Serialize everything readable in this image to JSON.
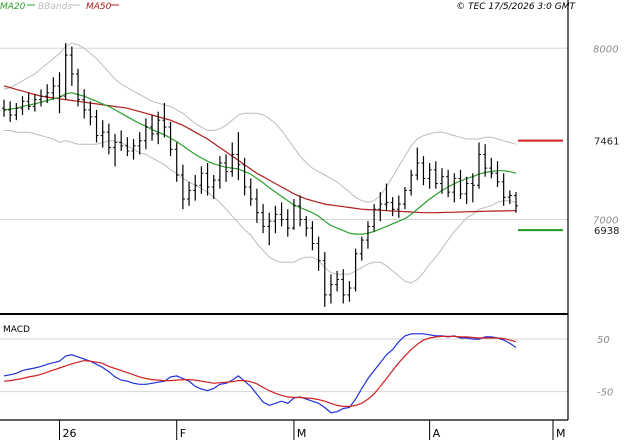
{
  "header": {
    "legend": [
      {
        "label": "MA20",
        "color": "#2ca02c"
      },
      {
        "label": "BBands",
        "color": "#bbbbbb"
      },
      {
        "label": "MA50",
        "color": "#b01c1c"
      }
    ],
    "timestamp": "© TEC 17/5/2026 3:0 GMT"
  },
  "levels": {
    "resistance": {
      "label": "7461",
      "value": 7461,
      "color": "#d21f1f"
    },
    "support": {
      "label": "6938",
      "value": 6938,
      "color": "#229922"
    }
  },
  "chart_data": [
    {
      "type": "ohlc",
      "title": "",
      "ylim": [
        6460,
        8200
      ],
      "y_ticks": [
        {
          "value": 8000,
          "label": "8000"
        },
        {
          "value": 7000,
          "label": "7000"
        }
      ],
      "grid": true,
      "x_ticks": [
        {
          "index": 9,
          "label": "26"
        },
        {
          "index": 28,
          "label": "F"
        },
        {
          "index": 47,
          "label": "M"
        },
        {
          "index": 69,
          "label": "A"
        },
        {
          "index": 89,
          "label": "M"
        }
      ],
      "bars": [
        [
          7650,
          7700,
          7600,
          7640
        ],
        [
          7640,
          7690,
          7570,
          7610
        ],
        [
          7610,
          7680,
          7580,
          7650
        ],
        [
          7650,
          7720,
          7610,
          7690
        ],
        [
          7690,
          7740,
          7640,
          7660
        ],
        [
          7660,
          7730,
          7630,
          7700
        ],
        [
          7700,
          7760,
          7660,
          7720
        ],
        [
          7720,
          7790,
          7680,
          7740
        ],
        [
          7740,
          7830,
          7700,
          7780
        ],
        [
          7780,
          7860,
          7620,
          7720
        ],
        [
          7720,
          8030,
          7700,
          7960
        ],
        [
          7960,
          8010,
          7780,
          7850
        ],
        [
          7850,
          7880,
          7660,
          7700
        ],
        [
          7700,
          7760,
          7590,
          7640
        ],
        [
          7640,
          7690,
          7550,
          7600
        ],
        [
          7600,
          7640,
          7450,
          7490
        ],
        [
          7490,
          7580,
          7420,
          7510
        ],
        [
          7510,
          7560,
          7380,
          7420
        ],
        [
          7420,
          7500,
          7310,
          7450
        ],
        [
          7450,
          7520,
          7400,
          7430
        ],
        [
          7430,
          7480,
          7370,
          7400
        ],
        [
          7400,
          7470,
          7350,
          7430
        ],
        [
          7430,
          7510,
          7380,
          7460
        ],
        [
          7460,
          7590,
          7410,
          7540
        ],
        [
          7540,
          7610,
          7460,
          7500
        ],
        [
          7500,
          7630,
          7440,
          7580
        ],
        [
          7580,
          7680,
          7480,
          7540
        ],
        [
          7540,
          7570,
          7370,
          7410
        ],
        [
          7410,
          7450,
          7220,
          7260
        ],
        [
          7260,
          7320,
          7060,
          7120
        ],
        [
          7120,
          7220,
          7080,
          7170
        ],
        [
          7170,
          7260,
          7110,
          7200
        ],
        [
          7200,
          7310,
          7150,
          7270
        ],
        [
          7270,
          7330,
          7140,
          7190
        ],
        [
          7190,
          7260,
          7120,
          7230
        ],
        [
          7230,
          7370,
          7180,
          7330
        ],
        [
          7330,
          7380,
          7220,
          7280
        ],
        [
          7280,
          7450,
          7250,
          7380
        ],
        [
          7380,
          7510,
          7230,
          7320
        ],
        [
          7320,
          7360,
          7140,
          7190
        ],
        [
          7190,
          7240,
          7080,
          7120
        ],
        [
          7120,
          7180,
          6980,
          7040
        ],
        [
          7040,
          7090,
          6920,
          6960
        ],
        [
          6960,
          7040,
          6850,
          6990
        ],
        [
          6990,
          7080,
          6920,
          7030
        ],
        [
          7030,
          7100,
          6960,
          7000
        ],
        [
          7000,
          7060,
          6900,
          6950
        ],
        [
          6950,
          7120,
          6940,
          7080
        ],
        [
          7080,
          7140,
          6960,
          7000
        ],
        [
          7000,
          7020,
          6900,
          6950
        ],
        [
          6950,
          6990,
          6820,
          6860
        ],
        [
          6860,
          6900,
          6700,
          6760
        ],
        [
          6760,
          6810,
          6490,
          6560
        ],
        [
          6560,
          6680,
          6510,
          6620
        ],
        [
          6620,
          6700,
          6580,
          6650
        ],
        [
          6650,
          6710,
          6510,
          6560
        ],
        [
          6560,
          6640,
          6520,
          6600
        ],
        [
          6600,
          6830,
          6580,
          6800
        ],
        [
          6800,
          6900,
          6760,
          6880
        ],
        [
          6880,
          6990,
          6830,
          6960
        ],
        [
          6960,
          7090,
          6930,
          7060
        ],
        [
          7060,
          7160,
          6990,
          7090
        ],
        [
          7090,
          7210,
          7050,
          7100
        ],
        [
          7100,
          7130,
          7020,
          7060
        ],
        [
          7060,
          7140,
          7010,
          7090
        ],
        [
          7090,
          7190,
          7060,
          7170
        ],
        [
          7170,
          7290,
          7140,
          7260
        ],
        [
          7260,
          7420,
          7230,
          7330
        ],
        [
          7330,
          7370,
          7200,
          7240
        ],
        [
          7240,
          7330,
          7180,
          7290
        ],
        [
          7290,
          7340,
          7180,
          7210
        ],
        [
          7210,
          7300,
          7150,
          7250
        ],
        [
          7250,
          7290,
          7130,
          7160
        ],
        [
          7160,
          7270,
          7100,
          7240
        ],
        [
          7240,
          7290,
          7120,
          7150
        ],
        [
          7150,
          7250,
          7090,
          7210
        ],
        [
          7210,
          7270,
          7100,
          7200
        ],
        [
          7200,
          7450,
          7180,
          7380
        ],
        [
          7380,
          7440,
          7250,
          7300
        ],
        [
          7300,
          7360,
          7240,
          7270
        ],
        [
          7270,
          7340,
          7190,
          7220
        ],
        [
          7220,
          7270,
          7080,
          7130
        ],
        [
          7130,
          7170,
          7090,
          7140
        ],
        [
          7140,
          7160,
          7040,
          7080
        ]
      ],
      "ma20": [
        7640,
        7645,
        7650,
        7660,
        7668,
        7675,
        7685,
        7695,
        7705,
        7712,
        7735,
        7740,
        7730,
        7720,
        7705,
        7690,
        7675,
        7660,
        7640,
        7620,
        7600,
        7580,
        7560,
        7545,
        7525,
        7510,
        7495,
        7475,
        7455,
        7430,
        7405,
        7380,
        7360,
        7340,
        7325,
        7315,
        7305,
        7300,
        7295,
        7280,
        7265,
        7240,
        7215,
        7185,
        7160,
        7135,
        7110,
        7085,
        7070,
        7055,
        7040,
        7020,
        6990,
        6965,
        6950,
        6935,
        6920,
        6915,
        6915,
        6920,
        6930,
        6945,
        6960,
        6975,
        6990,
        7005,
        7030,
        7060,
        7090,
        7120,
        7145,
        7170,
        7190,
        7210,
        7225,
        7240,
        7250,
        7265,
        7275,
        7280,
        7285,
        7285,
        7280,
        7270
      ],
      "ma50": [
        7780,
        7770,
        7760,
        7750,
        7740,
        7730,
        7720,
        7715,
        7710,
        7705,
        7700,
        7695,
        7690,
        7685,
        7680,
        7675,
        7670,
        7665,
        7660,
        7655,
        7650,
        7640,
        7630,
        7620,
        7610,
        7600,
        7590,
        7580,
        7565,
        7550,
        7530,
        7510,
        7490,
        7470,
        7445,
        7420,
        7395,
        7370,
        7345,
        7320,
        7295,
        7270,
        7250,
        7230,
        7210,
        7190,
        7170,
        7150,
        7135,
        7120,
        7110,
        7100,
        7090,
        7085,
        7080,
        7075,
        7070,
        7065,
        7060,
        7058,
        7056,
        7054,
        7052,
        7050,
        7048,
        7046,
        7044,
        7042,
        7040,
        7040,
        7040,
        7041,
        7042,
        7043,
        7044,
        7045,
        7046,
        7047,
        7048,
        7049,
        7050,
        7050,
        7051,
        7052
      ],
      "bb_upper": [
        7760,
        7770,
        7790,
        7810,
        7830,
        7850,
        7880,
        7910,
        7940,
        7970,
        8010,
        8030,
        8020,
        8000,
        7970,
        7940,
        7900,
        7860,
        7820,
        7790,
        7770,
        7750,
        7730,
        7710,
        7690,
        7680,
        7670,
        7660,
        7640,
        7620,
        7590,
        7560,
        7540,
        7520,
        7520,
        7530,
        7550,
        7580,
        7610,
        7620,
        7620,
        7620,
        7610,
        7590,
        7560,
        7520,
        7470,
        7420,
        7370,
        7330,
        7300,
        7280,
        7260,
        7240,
        7220,
        7190,
        7160,
        7130,
        7110,
        7100,
        7110,
        7140,
        7190,
        7250,
        7310,
        7370,
        7430,
        7470,
        7490,
        7500,
        7510,
        7510,
        7500,
        7490,
        7480,
        7470,
        7470,
        7470,
        7480,
        7480,
        7470,
        7460,
        7450,
        7440
      ],
      "bb_lower": [
        7520,
        7520,
        7510,
        7510,
        7510,
        7500,
        7490,
        7480,
        7470,
        7450,
        7460,
        7450,
        7440,
        7440,
        7440,
        7440,
        7450,
        7460,
        7460,
        7450,
        7430,
        7410,
        7390,
        7380,
        7360,
        7340,
        7320,
        7290,
        7270,
        7240,
        7220,
        7200,
        7180,
        7160,
        7130,
        7100,
        7060,
        7020,
        6980,
        6940,
        6910,
        6860,
        6820,
        6780,
        6760,
        6750,
        6750,
        6750,
        6770,
        6780,
        6780,
        6760,
        6720,
        6690,
        6680,
        6680,
        6680,
        6700,
        6720,
        6740,
        6750,
        6750,
        6730,
        6700,
        6670,
        6640,
        6630,
        6650,
        6690,
        6740,
        6780,
        6830,
        6880,
        6930,
        6970,
        7010,
        7030,
        7060,
        7070,
        7080,
        7100,
        7110,
        7110,
        7100
      ]
    },
    {
      "type": "line",
      "title": "MACD",
      "ylim": [
        -100,
        90
      ],
      "y_ticks": [
        {
          "value": 50,
          "label": "50"
        },
        {
          "value": -50,
          "label": "-50"
        }
      ],
      "grid": true,
      "series": [
        {
          "color": "#1f2fd8",
          "values": [
            -20,
            -18,
            -15,
            -10,
            -7,
            -5,
            -2,
            2,
            5,
            8,
            18,
            20,
            16,
            12,
            8,
            2,
            -4,
            -12,
            -22,
            -28,
            -30,
            -34,
            -36,
            -36,
            -34,
            -32,
            -30,
            -22,
            -20,
            -25,
            -30,
            -40,
            -45,
            -48,
            -44,
            -36,
            -34,
            -28,
            -20,
            -30,
            -40,
            -55,
            -70,
            -76,
            -72,
            -68,
            -72,
            -62,
            -60,
            -64,
            -68,
            -72,
            -80,
            -90,
            -88,
            -82,
            -80,
            -64,
            -44,
            -25,
            -10,
            5,
            20,
            30,
            45,
            56,
            60,
            60,
            60,
            58,
            56,
            56,
            54,
            56,
            52,
            52,
            50,
            50,
            54,
            54,
            52,
            48,
            42,
            34
          ]
        },
        {
          "color": "#d12020",
          "values": [
            -30,
            -29,
            -27,
            -25,
            -22,
            -20,
            -17,
            -13,
            -9,
            -5,
            -1,
            3,
            6,
            9,
            8,
            6,
            4,
            -2,
            -6,
            -10,
            -14,
            -18,
            -22,
            -25,
            -27,
            -28,
            -29,
            -29,
            -28,
            -27,
            -27,
            -28,
            -30,
            -32,
            -34,
            -33,
            -32,
            -31,
            -29,
            -29,
            -31,
            -35,
            -42,
            -48,
            -53,
            -57,
            -60,
            -61,
            -61,
            -62,
            -63,
            -65,
            -68,
            -72,
            -76,
            -78,
            -78,
            -76,
            -72,
            -64,
            -54,
            -40,
            -25,
            -10,
            5,
            18,
            30,
            40,
            48,
            52,
            54,
            55,
            55,
            55,
            54,
            54,
            53,
            52,
            52,
            52,
            52,
            51,
            48,
            45
          ]
        }
      ]
    }
  ]
}
